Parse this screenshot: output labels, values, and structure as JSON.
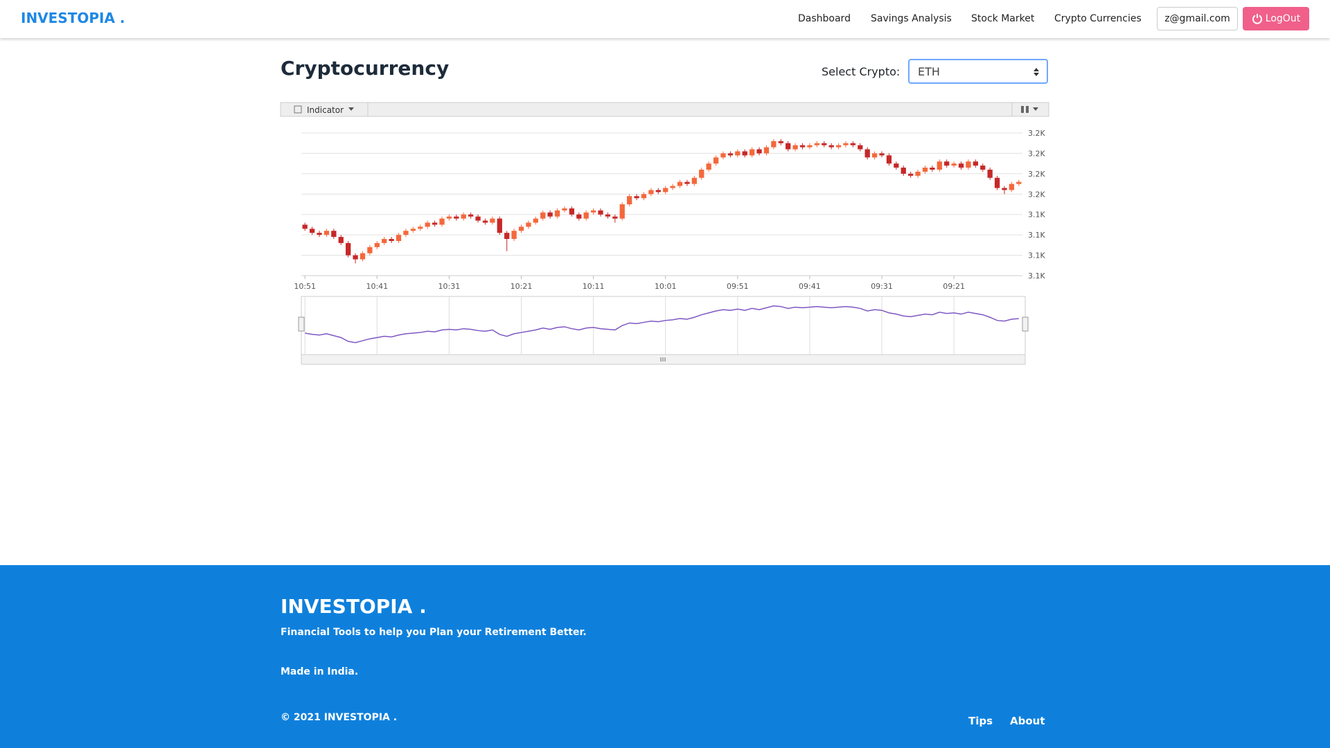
{
  "nav": {
    "brand": "INVESTOPIA .",
    "links": [
      "Dashboard",
      "Savings Analysis",
      "Stock Market",
      "Crypto Currencies"
    ],
    "email": "z@gmail.com",
    "logout": "LogOut"
  },
  "header": {
    "title": "Cryptocurrency",
    "select_label": "Select Crypto:",
    "select_value": "ETH"
  },
  "toolbar": {
    "indicator": "Indicator"
  },
  "chart_data": {
    "type": "candlestick",
    "up_color": "#f4683c",
    "down_color": "#c62828",
    "navigator_color": "#7e57c2",
    "grid": true,
    "categories": [
      "10:51",
      null,
      null,
      null,
      null,
      null,
      null,
      null,
      null,
      null,
      "10:41",
      null,
      null,
      null,
      null,
      null,
      null,
      null,
      null,
      null,
      "10:31",
      null,
      null,
      null,
      null,
      null,
      null,
      null,
      null,
      null,
      "10:21",
      null,
      null,
      null,
      null,
      null,
      null,
      null,
      null,
      null,
      "10:11",
      null,
      null,
      null,
      null,
      null,
      null,
      null,
      null,
      null,
      "10:01",
      null,
      null,
      null,
      null,
      null,
      null,
      null,
      null,
      null,
      "09:51",
      null,
      null,
      null,
      null,
      null,
      null,
      null,
      null,
      null,
      "09:41",
      null,
      null,
      null,
      null,
      null,
      null,
      null,
      null,
      null,
      "09:31",
      null,
      null,
      null,
      null,
      null,
      null,
      null,
      null,
      null,
      "09:21",
      null,
      null,
      null,
      null,
      null,
      null,
      null,
      null,
      null
    ],
    "ohlc": [
      [
        3130,
        3132,
        3124,
        3126
      ],
      [
        3126,
        3128,
        3120,
        3122
      ],
      [
        3122,
        3124,
        3118,
        3120
      ],
      [
        3120,
        3126,
        3118,
        3124
      ],
      [
        3124,
        3126,
        3116,
        3118
      ],
      [
        3118,
        3120,
        3110,
        3112
      ],
      [
        3112,
        3114,
        3098,
        3100
      ],
      [
        3100,
        3102,
        3092,
        3096
      ],
      [
        3096,
        3104,
        3094,
        3102
      ],
      [
        3102,
        3110,
        3100,
        3108
      ],
      [
        3108,
        3114,
        3106,
        3112
      ],
      [
        3112,
        3118,
        3110,
        3116
      ],
      [
        3116,
        3118,
        3112,
        3114
      ],
      [
        3114,
        3122,
        3112,
        3120
      ],
      [
        3120,
        3126,
        3118,
        3124
      ],
      [
        3124,
        3128,
        3122,
        3126
      ],
      [
        3126,
        3130,
        3124,
        3128
      ],
      [
        3128,
        3134,
        3126,
        3132
      ],
      [
        3132,
        3134,
        3128,
        3130
      ],
      [
        3130,
        3138,
        3128,
        3136
      ],
      [
        3136,
        3140,
        3134,
        3138
      ],
      [
        3138,
        3140,
        3134,
        3136
      ],
      [
        3136,
        3142,
        3134,
        3140
      ],
      [
        3140,
        3142,
        3136,
        3138
      ],
      [
        3138,
        3140,
        3132,
        3134
      ],
      [
        3134,
        3136,
        3130,
        3132
      ],
      [
        3132,
        3138,
        3130,
        3136
      ],
      [
        3136,
        3138,
        3120,
        3122
      ],
      [
        3122,
        3124,
        3104,
        3116
      ],
      [
        3116,
        3126,
        3114,
        3124
      ],
      [
        3124,
        3130,
        3122,
        3128
      ],
      [
        3128,
        3134,
        3126,
        3132
      ],
      [
        3132,
        3138,
        3130,
        3136
      ],
      [
        3136,
        3144,
        3134,
        3142
      ],
      [
        3142,
        3144,
        3136,
        3138
      ],
      [
        3138,
        3146,
        3136,
        3144
      ],
      [
        3144,
        3148,
        3142,
        3146
      ],
      [
        3146,
        3148,
        3138,
        3140
      ],
      [
        3140,
        3142,
        3134,
        3136
      ],
      [
        3136,
        3144,
        3134,
        3142
      ],
      [
        3142,
        3146,
        3140,
        3144
      ],
      [
        3144,
        3146,
        3138,
        3140
      ],
      [
        3140,
        3142,
        3136,
        3138
      ],
      [
        3138,
        3140,
        3132,
        3136
      ],
      [
        3136,
        3152,
        3134,
        3150
      ],
      [
        3150,
        3160,
        3148,
        3158
      ],
      [
        3158,
        3160,
        3154,
        3156
      ],
      [
        3156,
        3162,
        3154,
        3160
      ],
      [
        3160,
        3166,
        3158,
        3164
      ],
      [
        3164,
        3166,
        3160,
        3162
      ],
      [
        3162,
        3168,
        3160,
        3166
      ],
      [
        3166,
        3170,
        3164,
        3168
      ],
      [
        3168,
        3174,
        3166,
        3172
      ],
      [
        3172,
        3174,
        3168,
        3170
      ],
      [
        3170,
        3178,
        3168,
        3176
      ],
      [
        3176,
        3186,
        3174,
        3184
      ],
      [
        3184,
        3192,
        3182,
        3190
      ],
      [
        3190,
        3198,
        3188,
        3196
      ],
      [
        3196,
        3202,
        3194,
        3200
      ],
      [
        3200,
        3202,
        3196,
        3198
      ],
      [
        3198,
        3204,
        3196,
        3202
      ],
      [
        3202,
        3204,
        3196,
        3198
      ],
      [
        3198,
        3206,
        3196,
        3204
      ],
      [
        3204,
        3206,
        3198,
        3200
      ],
      [
        3200,
        3208,
        3198,
        3206
      ],
      [
        3206,
        3214,
        3204,
        3212
      ],
      [
        3212,
        3214,
        3208,
        3210
      ],
      [
        3210,
        3212,
        3202,
        3204
      ],
      [
        3204,
        3210,
        3202,
        3208
      ],
      [
        3208,
        3210,
        3204,
        3206
      ],
      [
        3206,
        3210,
        3204,
        3208
      ],
      [
        3208,
        3212,
        3206,
        3210
      ],
      [
        3210,
        3212,
        3206,
        3208
      ],
      [
        3208,
        3210,
        3204,
        3206
      ],
      [
        3206,
        3210,
        3204,
        3208
      ],
      [
        3208,
        3212,
        3206,
        3210
      ],
      [
        3210,
        3212,
        3206,
        3208
      ],
      [
        3208,
        3210,
        3202,
        3204
      ],
      [
        3204,
        3206,
        3194,
        3196
      ],
      [
        3196,
        3202,
        3194,
        3200
      ],
      [
        3200,
        3202,
        3196,
        3198
      ],
      [
        3198,
        3200,
        3188,
        3190
      ],
      [
        3190,
        3192,
        3184,
        3186
      ],
      [
        3186,
        3188,
        3178,
        3180
      ],
      [
        3180,
        3182,
        3176,
        3178
      ],
      [
        3178,
        3184,
        3176,
        3182
      ],
      [
        3182,
        3188,
        3180,
        3186
      ],
      [
        3186,
        3188,
        3182,
        3184
      ],
      [
        3184,
        3194,
        3182,
        3192
      ],
      [
        3192,
        3194,
        3186,
        3188
      ],
      [
        3188,
        3192,
        3186,
        3190
      ],
      [
        3190,
        3192,
        3184,
        3186
      ],
      [
        3186,
        3194,
        3184,
        3192
      ],
      [
        3192,
        3194,
        3186,
        3188
      ],
      [
        3188,
        3190,
        3182,
        3184
      ],
      [
        3184,
        3186,
        3174,
        3176
      ],
      [
        3176,
        3178,
        3164,
        3166
      ],
      [
        3166,
        3168,
        3160,
        3164
      ],
      [
        3164,
        3172,
        3162,
        3170
      ],
      [
        3170,
        3174,
        3168,
        3172
      ]
    ],
    "ylim": [
      3080,
      3220
    ],
    "yticks": [
      {
        "value": 3220,
        "label": "3.2K"
      },
      {
        "value": 3200,
        "label": "3.2K"
      },
      {
        "value": 3180,
        "label": "3.2K"
      },
      {
        "value": 3160,
        "label": "3.2K"
      },
      {
        "value": 3140,
        "label": "3.1K"
      },
      {
        "value": 3120,
        "label": "3.1K"
      },
      {
        "value": 3100,
        "label": "3.1K"
      },
      {
        "value": 3080,
        "label": "3.1K"
      }
    ]
  },
  "footer": {
    "brand": "INVESTOPIA .",
    "tagline": "Financial Tools to help you Plan your Retirement Better.",
    "made": "Made in India.",
    "copyright": "© 2021 INVESTOPIA .",
    "links": [
      "Tips",
      "About"
    ]
  }
}
